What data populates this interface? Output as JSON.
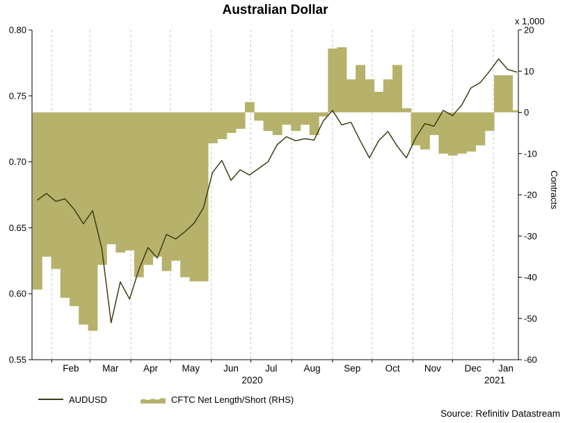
{
  "title": "Australian Dollar",
  "top_right_unit": "x 1,000",
  "right_axis_title": "Contracts",
  "source": "Source: Refinitiv Datastream",
  "legend": {
    "items": [
      {
        "label": "AUDUSD",
        "swatch": "line"
      },
      {
        "label": "CFTC Net Length/Short (RHS)",
        "swatch": "area"
      }
    ]
  },
  "colors": {
    "line": "#3e3c15",
    "bar": "#b6b26b",
    "grid": "#c9c9c9",
    "axis": "#000000"
  },
  "chart_data": {
    "type": "line+bar",
    "title": "Australian Dollar",
    "grid": "vertical-dashed-monthly",
    "legend_position": "bottom-left",
    "x_start": "2020-01-17",
    "x_end": "2021-01-20",
    "left_axis": {
      "series": "AUDUSD",
      "min": 0.55,
      "max": 0.8,
      "tick_step": 0.05,
      "ticks": [
        "0.80",
        "0.75",
        "0.70",
        "0.65",
        "0.60",
        "0.55"
      ]
    },
    "right_axis": {
      "series": "CFTC Net Length/Short (RHS)",
      "unit": "x 1,000",
      "label": "Contracts",
      "min": -60,
      "max": 20,
      "tick_step": 10,
      "ticks": [
        "20",
        "10",
        "0",
        "-10",
        "-20",
        "-30",
        "-40",
        "-50",
        "-60"
      ]
    },
    "month_labels": [
      "Feb",
      "Mar",
      "Apr",
      "May",
      "Jun",
      "Jul",
      "Aug",
      "Sep",
      "Oct",
      "Nov",
      "Dec",
      "Jan"
    ],
    "year_labels": [
      {
        "text": "2020",
        "month": "Jul"
      },
      {
        "text": "2021",
        "month": "Jan"
      }
    ],
    "dates": [
      "2020-01-21",
      "2020-01-28",
      "2020-02-04",
      "2020-02-11",
      "2020-02-18",
      "2020-02-25",
      "2020-03-03",
      "2020-03-10",
      "2020-03-17",
      "2020-03-24",
      "2020-03-31",
      "2020-04-07",
      "2020-04-14",
      "2020-04-21",
      "2020-04-28",
      "2020-05-05",
      "2020-05-12",
      "2020-05-19",
      "2020-05-26",
      "2020-06-02",
      "2020-06-09",
      "2020-06-16",
      "2020-06-23",
      "2020-06-30",
      "2020-07-07",
      "2020-07-14",
      "2020-07-21",
      "2020-07-28",
      "2020-08-04",
      "2020-08-11",
      "2020-08-18",
      "2020-08-25",
      "2020-09-01",
      "2020-09-08",
      "2020-09-15",
      "2020-09-22",
      "2020-09-29",
      "2020-10-06",
      "2020-10-13",
      "2020-10-20",
      "2020-10-27",
      "2020-11-03",
      "2020-11-10",
      "2020-11-17",
      "2020-11-24",
      "2020-12-01",
      "2020-12-08",
      "2020-12-15",
      "2020-12-22",
      "2020-12-29",
      "2021-01-05",
      "2021-01-12",
      "2021-01-19"
    ],
    "series": [
      {
        "name": "AUDUSD",
        "type": "line",
        "axis": "left",
        "values": [
          0.671,
          0.676,
          0.67,
          0.672,
          0.664,
          0.653,
          0.663,
          0.634,
          0.578,
          0.609,
          0.596,
          0.618,
          0.635,
          0.627,
          0.645,
          0.6415,
          0.647,
          0.6535,
          0.665,
          0.692,
          0.701,
          0.686,
          0.694,
          0.69,
          0.695,
          0.7,
          0.713,
          0.719,
          0.716,
          0.7175,
          0.7165,
          0.731,
          0.739,
          0.728,
          0.73,
          0.716,
          0.703,
          0.716,
          0.723,
          0.712,
          0.703,
          0.718,
          0.729,
          0.727,
          0.739,
          0.735,
          0.743,
          0.756,
          0.76,
          0.7685,
          0.778,
          0.77,
          0.768
        ]
      },
      {
        "name": "CFTC Net Length/Short (RHS)",
        "type": "bar",
        "axis": "right",
        "values": [
          -43,
          -35,
          -38,
          -45,
          -47,
          -51.5,
          -53,
          -37,
          -32,
          -34,
          -33.5,
          -40,
          -37,
          -35,
          -38.5,
          -36,
          -40,
          -41,
          -41,
          -7.5,
          -6.5,
          -5,
          -4,
          2.5,
          -2,
          -4.5,
          -5.5,
          -3,
          -4.5,
          -3,
          -5.5,
          -1,
          15.5,
          15.8,
          8,
          11.5,
          8,
          5,
          8,
          11.5,
          1,
          -8,
          -9,
          -5.5,
          -10,
          -10.5,
          -10,
          -9.5,
          -8,
          -4.5,
          9,
          9,
          0.5
        ]
      }
    ]
  }
}
